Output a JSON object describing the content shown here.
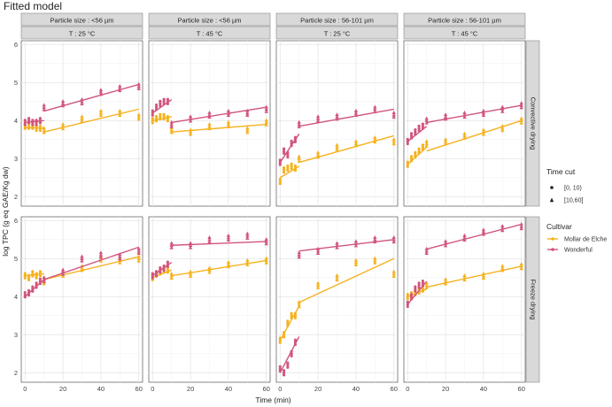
{
  "title": "Fitted model",
  "chart_data": {
    "type": "scatter",
    "title": "Fitted model",
    "xlabel": "Time (min)",
    "ylabel": "log TPC (g eq GAE/Kg dw)",
    "xlim": [
      -2,
      62
    ],
    "ylim": [
      1.75,
      6.1
    ],
    "x_ticks": [
      0,
      20,
      40,
      60
    ],
    "y_ticks": [
      2,
      3,
      4,
      5,
      6
    ],
    "grid": true,
    "legend_position": "right",
    "column_strips": [
      {
        "particle": "Particle size : <56 µm",
        "temp": "T : 25 °C"
      },
      {
        "particle": "Particle size : <56 µm",
        "temp": "T : 45 °C"
      },
      {
        "particle": "Particle size : 56-101 µm",
        "temp": "T : 25 °C"
      },
      {
        "particle": "Particle size : 56-101 µm",
        "temp": "T : 45 °C"
      }
    ],
    "row_strips": [
      "Convective drying",
      "Freeze drying"
    ],
    "legends": {
      "shape": {
        "title": "Time cut",
        "items": [
          "[0, 10)",
          "[10,60]"
        ]
      },
      "color": {
        "title": "Cultivar",
        "items": [
          "Mollar de Elche",
          "Wonderful"
        ]
      }
    },
    "colors": {
      "Mollar de Elche": "#F5B21E",
      "Wonderful": "#D1557C"
    },
    "x_samples": [
      0,
      2,
      4,
      6,
      8,
      10,
      20,
      30,
      40,
      50,
      60
    ],
    "panels": [
      {
        "row": 0,
        "col": 0,
        "series": [
          {
            "cultivar": "Mollar de Elche",
            "y": [
              3.85,
              3.85,
              3.85,
              3.8,
              3.8,
              3.75,
              3.85,
              4.05,
              4.2,
              4.2,
              4.1
            ],
            "fit": [
              {
                "x": [
                  0,
                  10
                ],
                "y": [
                  3.82,
                  3.8
                ]
              },
              {
                "x": [
                  10,
                  60
                ],
                "y": [
                  3.7,
                  4.3
                ]
              }
            ]
          },
          {
            "cultivar": "Wonderful",
            "y": [
              3.95,
              4.0,
              3.95,
              3.95,
              4.0,
              4.35,
              4.45,
              4.5,
              4.75,
              4.85,
              4.9
            ],
            "fit": [
              {
                "x": [
                  0,
                  10
                ],
                "y": [
                  3.95,
                  4.0
                ]
              },
              {
                "x": [
                  10,
                  60
                ],
                "y": [
                  4.25,
                  4.95
                ]
              }
            ]
          }
        ]
      },
      {
        "row": 0,
        "col": 1,
        "series": [
          {
            "cultivar": "Mollar de Elche",
            "y": [
              4.0,
              4.05,
              4.1,
              4.1,
              4.05,
              3.75,
              3.7,
              3.85,
              3.9,
              3.75,
              3.95
            ],
            "fit": [
              {
                "x": [
                  0,
                  10
                ],
                "y": [
                  4.0,
                  4.1
                ]
              },
              {
                "x": [
                  10,
                  60
                ],
                "y": [
                  3.7,
                  3.9
                ]
              }
            ]
          },
          {
            "cultivar": "Wonderful",
            "y": [
              4.2,
              4.35,
              4.45,
              4.5,
              4.5,
              3.9,
              4.05,
              4.15,
              4.2,
              4.2,
              4.3
            ],
            "fit": [
              {
                "x": [
                  0,
                  10
                ],
                "y": [
                  4.2,
                  4.55
                ]
              },
              {
                "x": [
                  10,
                  60
                ],
                "y": [
                  3.95,
                  4.35
                ]
              }
            ]
          }
        ]
      },
      {
        "row": 0,
        "col": 2,
        "series": [
          {
            "cultivar": "Mollar de Elche",
            "y": [
              2.4,
              2.7,
              2.75,
              2.8,
              2.75,
              3.0,
              3.1,
              3.3,
              3.4,
              3.5,
              3.45
            ],
            "fit": [
              {
                "x": [
                  0,
                  10
                ],
                "y": [
                  2.5,
                  2.8
                ]
              },
              {
                "x": [
                  10,
                  60
                ],
                "y": [
                  2.9,
                  3.6
                ]
              }
            ]
          },
          {
            "cultivar": "Wonderful",
            "y": [
              2.9,
              3.2,
              3.1,
              3.4,
              3.5,
              3.9,
              4.05,
              4.1,
              4.2,
              4.3,
              4.15
            ],
            "fit": [
              {
                "x": [
                  0,
                  10
                ],
                "y": [
                  2.9,
                  3.65
                ]
              },
              {
                "x": [
                  10,
                  60
                ],
                "y": [
                  3.85,
                  4.3
                ]
              }
            ]
          }
        ]
      },
      {
        "row": 0,
        "col": 3,
        "series": [
          {
            "cultivar": "Mollar de Elche",
            "y": [
              2.85,
              3.0,
              3.1,
              3.2,
              3.3,
              3.4,
              3.45,
              3.6,
              3.7,
              3.8,
              4.0
            ],
            "fit": [
              {
                "x": [
                  0,
                  10
                ],
                "y": [
                  2.85,
                  3.3
                ]
              },
              {
                "x": [
                  10,
                  60
                ],
                "y": [
                  3.2,
                  4.0
                ]
              }
            ]
          },
          {
            "cultivar": "Wonderful",
            "y": [
              3.45,
              3.6,
              3.7,
              3.8,
              3.85,
              4.0,
              4.1,
              4.15,
              4.2,
              4.3,
              4.4
            ],
            "fit": [
              {
                "x": [
                  0,
                  10
                ],
                "y": [
                  3.45,
                  3.85
                ]
              },
              {
                "x": [
                  10,
                  60
                ],
                "y": [
                  3.95,
                  4.4
                ]
              }
            ]
          }
        ]
      },
      {
        "row": 1,
        "col": 0,
        "series": [
          {
            "cultivar": "Mollar de Elche",
            "y": [
              4.55,
              4.5,
              4.6,
              4.55,
              4.6,
              4.4,
              4.6,
              4.75,
              5.0,
              4.95,
              5.0
            ],
            "fit": [
              {
                "x": [
                  0,
                  10
                ],
                "y": [
                  4.55,
                  4.6
                ]
              },
              {
                "x": [
                  10,
                  60
                ],
                "y": [
                  4.45,
                  5.05
                ]
              }
            ]
          },
          {
            "cultivar": "Wonderful",
            "y": [
              4.05,
              4.1,
              4.2,
              4.3,
              4.4,
              4.45,
              4.65,
              5.0,
              5.1,
              5.05,
              5.2
            ],
            "fit": [
              {
                "x": [
                  0,
                  10
                ],
                "y": [
                  4.0,
                  4.45
                ]
              },
              {
                "x": [
                  10,
                  60
                ],
                "y": [
                  4.45,
                  5.3
                ]
              }
            ]
          }
        ]
      },
      {
        "row": 1,
        "col": 1,
        "series": [
          {
            "cultivar": "Mollar de Elche",
            "y": [
              4.5,
              4.6,
              4.65,
              4.7,
              4.7,
              4.55,
              4.6,
              4.7,
              4.85,
              4.9,
              4.95
            ],
            "fit": [
              {
                "x": [
                  0,
                  10
                ],
                "y": [
                  4.5,
                  4.7
                ]
              },
              {
                "x": [
                  10,
                  60
                ],
                "y": [
                  4.55,
                  4.95
                ]
              }
            ]
          },
          {
            "cultivar": "Wonderful",
            "y": [
              4.55,
              4.6,
              4.7,
              4.75,
              4.85,
              5.35,
              5.35,
              5.5,
              5.55,
              5.6,
              5.45
            ],
            "fit": [
              {
                "x": [
                  0,
                  10
                ],
                "y": [
                  4.55,
                  4.9
                ]
              },
              {
                "x": [
                  10,
                  60
                ],
                "y": [
                  5.35,
                  5.45
                ]
              }
            ]
          }
        ]
      },
      {
        "row": 1,
        "col": 2,
        "series": [
          {
            "cultivar": "Mollar de Elche",
            "y": [
              2.85,
              3.0,
              3.3,
              3.5,
              3.5,
              3.8,
              4.3,
              4.5,
              4.9,
              4.95,
              4.6
            ],
            "fit": [
              {
                "x": [
                  0,
                  10
                ],
                "y": [
                  2.85,
                  3.75
                ]
              },
              {
                "x": [
                  10,
                  60
                ],
                "y": [
                  3.85,
                  5.0
                ]
              }
            ]
          },
          {
            "cultivar": "Wonderful",
            "y": [
              2.1,
              2.0,
              2.2,
              2.5,
              2.8,
              5.1,
              5.2,
              5.35,
              5.4,
              5.5,
              5.5
            ],
            "fit": [
              {
                "x": [
                  0,
                  10
                ],
                "y": [
                  2.0,
                  2.95
                ]
              },
              {
                "x": [
                  10,
                  60
                ],
                "y": [
                  5.2,
                  5.5
                ]
              }
            ]
          }
        ]
      },
      {
        "row": 1,
        "col": 3,
        "series": [
          {
            "cultivar": "Mollar de Elche",
            "y": [
              4.0,
              4.05,
              4.1,
              4.15,
              4.2,
              4.3,
              4.4,
              4.5,
              4.55,
              4.75,
              4.8
            ],
            "fit": [
              {
                "x": [
                  0,
                  10
                ],
                "y": [
                  4.0,
                  4.2
                ]
              },
              {
                "x": [
                  10,
                  60
                ],
                "y": [
                  4.25,
                  4.8
                ]
              }
            ]
          },
          {
            "cultivar": "Wonderful",
            "y": [
              3.8,
              4.0,
              4.2,
              4.3,
              4.35,
              5.2,
              5.4,
              5.55,
              5.7,
              5.8,
              5.85
            ],
            "fit": [
              {
                "x": [
                  0,
                  10
                ],
                "y": [
                  3.8,
                  4.4
                ]
              },
              {
                "x": [
                  10,
                  60
                ],
                "y": [
                  5.25,
                  5.9
                ]
              }
            ]
          }
        ]
      }
    ]
  }
}
